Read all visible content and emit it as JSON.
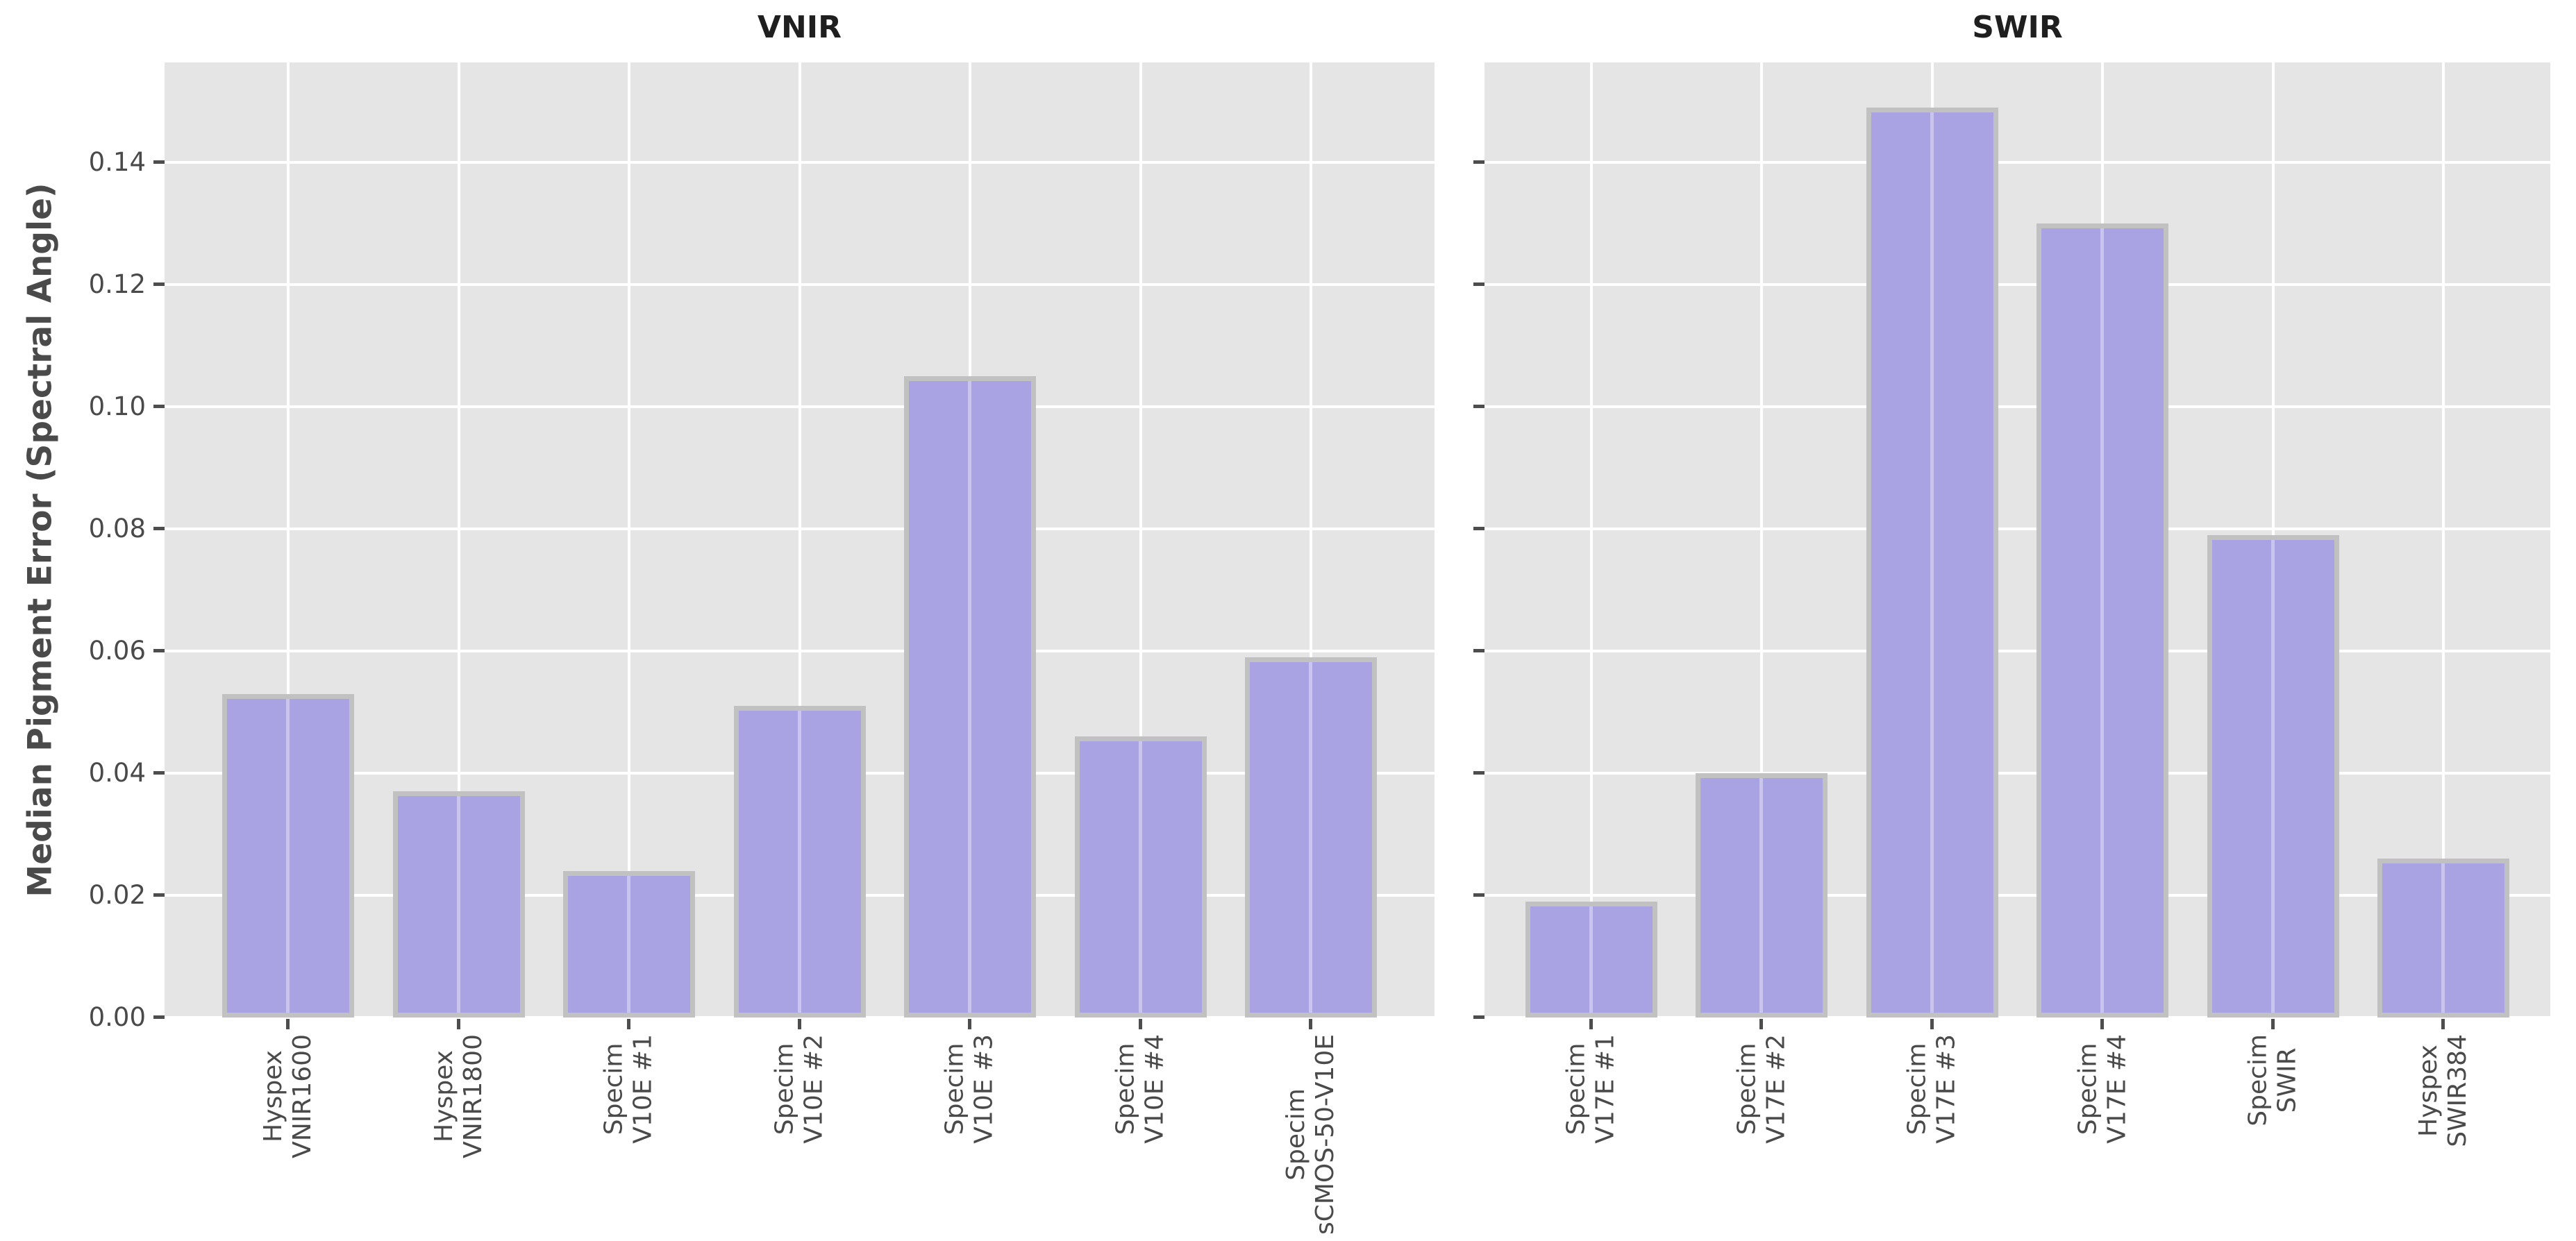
{
  "chart_data": [
    {
      "type": "bar",
      "title": "VNIR",
      "categories": [
        "Hyspex VNIR1600",
        "Hyspex VNIR1800",
        "Specim V10E #1",
        "Specim V10E #2",
        "Specim V10E #3",
        "Specim V10E #4",
        "Specim sCMOS-50-V10E"
      ],
      "values": [
        0.053,
        0.037,
        0.024,
        0.051,
        0.105,
        0.046,
        0.059
      ],
      "xlabel": "",
      "ylabel": "Median Pigment Error (Spectral Angle)",
      "ylim": [
        0,
        0.156
      ],
      "yticks": [
        0.0,
        0.02,
        0.04,
        0.06,
        0.08,
        0.1,
        0.12,
        0.14
      ],
      "grid": true,
      "legend_position": "none"
    },
    {
      "type": "bar",
      "title": "SWIR",
      "categories": [
        "Specim V17E #1",
        "Specim V17E #2",
        "Specim V17E #3",
        "Specim V17E #4",
        "Specim SWIR",
        "Hyspex SWIR384"
      ],
      "values": [
        0.019,
        0.04,
        0.149,
        0.13,
        0.079,
        0.026
      ],
      "xlabel": "",
      "ylabel": "",
      "ylim": [
        0,
        0.156
      ],
      "yticks": [
        0.0,
        0.02,
        0.04,
        0.06,
        0.08,
        0.1,
        0.12,
        0.14
      ],
      "grid": true,
      "legend_position": "none"
    }
  ],
  "style": {
    "plot_background": "#e5e5e5",
    "gridline_color": "#ffffff",
    "bar_fill": "#aaa3e3",
    "bar_edge": "#c1c1c1",
    "bar_gridline_stripe": "#c9c5ef",
    "tick_mark_color": "#4d4d4d",
    "tick_label_color": "#4a4a4a",
    "title_color": "#1f1f1f"
  }
}
